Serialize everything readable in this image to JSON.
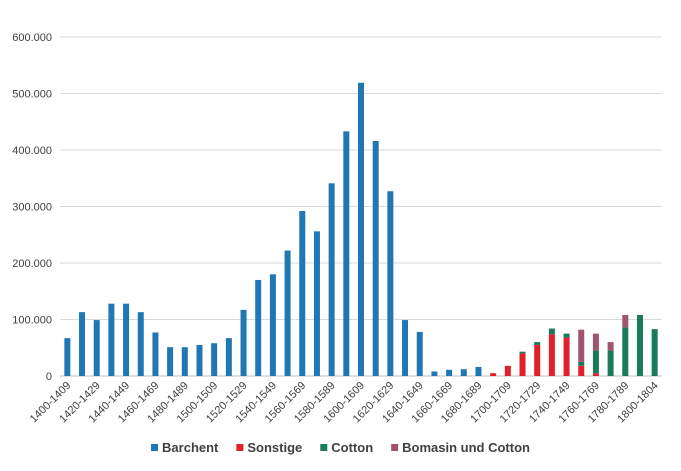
{
  "chart_data": {
    "type": "bar",
    "stacked": true,
    "title": "",
    "xlabel": "",
    "ylabel": "",
    "ylim": [
      0,
      600000
    ],
    "y_ticks": [
      {
        "value": 0,
        "label": "0"
      },
      {
        "value": 100000,
        "label": "100.000"
      },
      {
        "value": 200000,
        "label": "200.000"
      },
      {
        "value": 300000,
        "label": "300.000"
      },
      {
        "value": 400000,
        "label": "400.000"
      },
      {
        "value": 500000,
        "label": "500.000"
      },
      {
        "value": 600000,
        "label": "600.000"
      }
    ],
    "grid": true,
    "legend_position": "bottom",
    "categories": [
      "1400-1409",
      "1410-1419",
      "1420-1429",
      "1430-1439",
      "1440-1449",
      "1450-1459",
      "1460-1469",
      "1470-1479",
      "1480-1489",
      "1490-1499",
      "1500-1509",
      "1510-1519",
      "1520-1529",
      "1530-1539",
      "1540-1549",
      "1550-1559",
      "1560-1569",
      "1570-1579",
      "1580-1589",
      "1590-1599",
      "1600-1609",
      "1610-1619",
      "1620-1629",
      "1630-1639",
      "1640-1649",
      "1650-1659",
      "1660-1669",
      "1670-1679",
      "1680-1689",
      "1690-1699",
      "1700-1709",
      "1710-1719",
      "1720-1729",
      "1730-1739",
      "1740-1749",
      "1750-1759",
      "1760-1769",
      "1770-1779",
      "1780-1789",
      "1790-1799",
      "1800-1804"
    ],
    "x_tick_labels": [
      "1400-1409",
      "1420-1429",
      "1440-1449",
      "1460-1469",
      "1480-1489",
      "1500-1509",
      "1520-1529",
      "1540-1549",
      "1560-1569",
      "1580-1589",
      "1600-1609",
      "1620-1629",
      "1640-1649",
      "1660-1669",
      "1680-1689",
      "1700-1709",
      "1720-1729",
      "1740-1749",
      "1760-1769",
      "1780-1789",
      "1800-1804"
    ],
    "series": [
      {
        "name": "Barchent",
        "color": "#1F77B4",
        "values": [
          67000,
          113000,
          99000,
          128000,
          128000,
          113000,
          77000,
          51000,
          51000,
          55000,
          58000,
          67000,
          117000,
          170000,
          180000,
          222000,
          292000,
          256000,
          341000,
          433000,
          519000,
          416000,
          327000,
          99000,
          78000,
          8000,
          11000,
          12000,
          16000,
          0,
          0,
          0,
          0,
          0,
          0,
          0,
          0,
          0,
          0,
          0,
          0
        ]
      },
      {
        "name": "Sonstige",
        "color": "#E0202A",
        "values": [
          0,
          0,
          0,
          0,
          0,
          0,
          0,
          0,
          0,
          0,
          0,
          0,
          0,
          0,
          0,
          0,
          0,
          0,
          0,
          0,
          0,
          0,
          0,
          0,
          0,
          0,
          0,
          0,
          0,
          5000,
          18000,
          40000,
          55000,
          74000,
          68000,
          18000,
          5000,
          0,
          0,
          0,
          0
        ]
      },
      {
        "name": "Cotton",
        "color": "#1B7A5A",
        "values": [
          0,
          0,
          0,
          0,
          0,
          0,
          0,
          0,
          0,
          0,
          0,
          0,
          0,
          0,
          0,
          0,
          0,
          0,
          0,
          0,
          0,
          0,
          0,
          0,
          0,
          0,
          0,
          0,
          0,
          0,
          0,
          3000,
          5000,
          10000,
          7000,
          7000,
          40000,
          45000,
          86000,
          108000,
          83000
        ]
      },
      {
        "name": "Bomasin und Cotton",
        "color": "#A35372",
        "values": [
          0,
          0,
          0,
          0,
          0,
          0,
          0,
          0,
          0,
          0,
          0,
          0,
          0,
          0,
          0,
          0,
          0,
          0,
          0,
          0,
          0,
          0,
          0,
          0,
          0,
          0,
          0,
          0,
          0,
          0,
          0,
          0,
          0,
          0,
          0,
          57000,
          30000,
          15000,
          22000,
          0,
          0
        ]
      }
    ]
  }
}
